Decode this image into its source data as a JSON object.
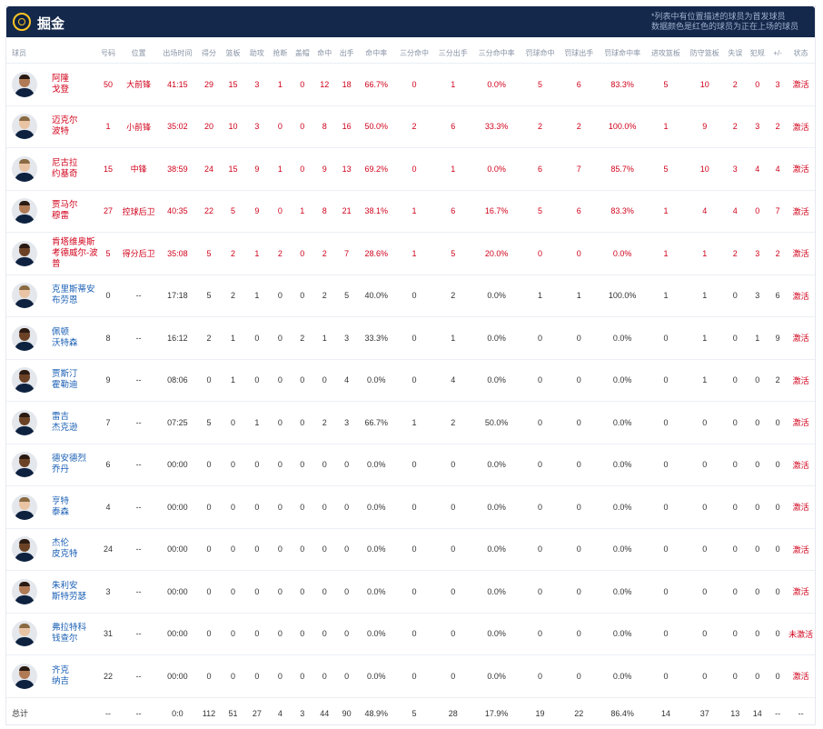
{
  "header": {
    "team_name": "掘金",
    "note_line1": "*列表中有位置描述的球员为首发球员",
    "note_line2": "数据颜色是红色的球员为正在上场的球员"
  },
  "columns": [
    "球员",
    "号码",
    "位置",
    "出场时间",
    "得分",
    "篮板",
    "助攻",
    "抢断",
    "盖帽",
    "命中",
    "出手",
    "命中率",
    "三分命中",
    "三分出手",
    "三分命中率",
    "罚球命中",
    "罚球出手",
    "罚球命中率",
    "进攻篮板",
    "防守篮板",
    "失误",
    "犯规",
    "+/-",
    "状态"
  ],
  "players": [
    {
      "name1": "阿隆",
      "name2": "戈登",
      "starter": true,
      "tone": "",
      "cells": [
        "50",
        "大前锋",
        "41:15",
        "29",
        "15",
        "3",
        "1",
        "0",
        "12",
        "18",
        "66.7%",
        "0",
        "1",
        "0.0%",
        "5",
        "6",
        "83.3%",
        "5",
        "10",
        "2",
        "0",
        "3",
        "激活"
      ]
    },
    {
      "name1": "迈克尔",
      "name2": "波特",
      "starter": true,
      "tone": "light",
      "cells": [
        "1",
        "小前锋",
        "35:02",
        "20",
        "10",
        "3",
        "0",
        "0",
        "8",
        "16",
        "50.0%",
        "2",
        "6",
        "33.3%",
        "2",
        "2",
        "100.0%",
        "1",
        "9",
        "2",
        "3",
        "2",
        "激活"
      ]
    },
    {
      "name1": "尼古拉",
      "name2": "约基奇",
      "starter": true,
      "tone": "light",
      "cells": [
        "15",
        "中锋",
        "38:59",
        "24",
        "15",
        "9",
        "1",
        "0",
        "9",
        "13",
        "69.2%",
        "0",
        "1",
        "0.0%",
        "6",
        "7",
        "85.7%",
        "5",
        "10",
        "3",
        "4",
        "4",
        "激活"
      ]
    },
    {
      "name1": "贾马尔",
      "name2": "穆雷",
      "starter": true,
      "tone": "",
      "cells": [
        "27",
        "控球后卫",
        "40:35",
        "22",
        "5",
        "9",
        "0",
        "1",
        "8",
        "21",
        "38.1%",
        "1",
        "6",
        "16.7%",
        "5",
        "6",
        "83.3%",
        "1",
        "4",
        "4",
        "0",
        "7",
        "激活"
      ]
    },
    {
      "name1": "肯塔维奥斯",
      "name2": "考德威尔-波",
      "name3": "普",
      "starter": true,
      "tone": "dark",
      "cells": [
        "5",
        "得分后卫",
        "35:08",
        "5",
        "2",
        "1",
        "2",
        "0",
        "2",
        "7",
        "28.6%",
        "1",
        "5",
        "20.0%",
        "0",
        "0",
        "0.0%",
        "1",
        "1",
        "2",
        "3",
        "2",
        "激活"
      ]
    },
    {
      "name1": "克里斯蒂安",
      "name2": "布劳恩",
      "starter": false,
      "tone": "light",
      "cells": [
        "0",
        "--",
        "17:18",
        "5",
        "2",
        "1",
        "0",
        "0",
        "2",
        "5",
        "40.0%",
        "0",
        "2",
        "0.0%",
        "1",
        "1",
        "100.0%",
        "1",
        "1",
        "0",
        "3",
        "6",
        "激活"
      ]
    },
    {
      "name1": "佩顿",
      "name2": "沃特森",
      "starter": false,
      "tone": "dark",
      "cells": [
        "8",
        "--",
        "16:12",
        "2",
        "1",
        "0",
        "0",
        "2",
        "1",
        "3",
        "33.3%",
        "0",
        "1",
        "0.0%",
        "0",
        "0",
        "0.0%",
        "0",
        "1",
        "0",
        "1",
        "9",
        "激活"
      ]
    },
    {
      "name1": "贾斯汀",
      "name2": "霍勒迪",
      "starter": false,
      "tone": "dark",
      "cells": [
        "9",
        "--",
        "08:06",
        "0",
        "1",
        "0",
        "0",
        "0",
        "0",
        "4",
        "0.0%",
        "0",
        "4",
        "0.0%",
        "0",
        "0",
        "0.0%",
        "0",
        "1",
        "0",
        "0",
        "2",
        "激活"
      ]
    },
    {
      "name1": "雷吉",
      "name2": "杰克逊",
      "starter": false,
      "tone": "dark",
      "cells": [
        "7",
        "--",
        "07:25",
        "5",
        "0",
        "1",
        "0",
        "0",
        "2",
        "3",
        "66.7%",
        "1",
        "2",
        "50.0%",
        "0",
        "0",
        "0.0%",
        "0",
        "0",
        "0",
        "0",
        "0",
        "激活"
      ]
    },
    {
      "name1": "德安德烈",
      "name2": "乔丹",
      "starter": false,
      "tone": "dark",
      "cells": [
        "6",
        "--",
        "00:00",
        "0",
        "0",
        "0",
        "0",
        "0",
        "0",
        "0",
        "0.0%",
        "0",
        "0",
        "0.0%",
        "0",
        "0",
        "0.0%",
        "0",
        "0",
        "0",
        "0",
        "0",
        "激活"
      ]
    },
    {
      "name1": "亨特",
      "name2": "泰森",
      "starter": false,
      "tone": "light",
      "cells": [
        "4",
        "--",
        "00:00",
        "0",
        "0",
        "0",
        "0",
        "0",
        "0",
        "0",
        "0.0%",
        "0",
        "0",
        "0.0%",
        "0",
        "0",
        "0.0%",
        "0",
        "0",
        "0",
        "0",
        "0",
        "激活"
      ]
    },
    {
      "name1": "杰伦",
      "name2": "皮克特",
      "starter": false,
      "tone": "dark",
      "cells": [
        "24",
        "--",
        "00:00",
        "0",
        "0",
        "0",
        "0",
        "0",
        "0",
        "0",
        "0.0%",
        "0",
        "0",
        "0.0%",
        "0",
        "0",
        "0.0%",
        "0",
        "0",
        "0",
        "0",
        "0",
        "激活"
      ]
    },
    {
      "name1": "朱利安",
      "name2": "斯特劳瑟",
      "starter": false,
      "tone": "",
      "cells": [
        "3",
        "--",
        "00:00",
        "0",
        "0",
        "0",
        "0",
        "0",
        "0",
        "0",
        "0.0%",
        "0",
        "0",
        "0.0%",
        "0",
        "0",
        "0.0%",
        "0",
        "0",
        "0",
        "0",
        "0",
        "激活"
      ]
    },
    {
      "name1": "弗拉特科",
      "name2": "钱查尔",
      "starter": false,
      "tone": "light",
      "cells": [
        "31",
        "--",
        "00:00",
        "0",
        "0",
        "0",
        "0",
        "0",
        "0",
        "0",
        "0.0%",
        "0",
        "0",
        "0.0%",
        "0",
        "0",
        "0.0%",
        "0",
        "0",
        "0",
        "0",
        "0",
        "未激活"
      ]
    },
    {
      "name1": "齐克",
      "name2": "纳吉",
      "starter": false,
      "tone": "",
      "cells": [
        "22",
        "--",
        "00:00",
        "0",
        "0",
        "0",
        "0",
        "0",
        "0",
        "0",
        "0.0%",
        "0",
        "0",
        "0.0%",
        "0",
        "0",
        "0.0%",
        "0",
        "0",
        "0",
        "0",
        "0",
        "激活"
      ]
    }
  ],
  "totals": {
    "label": "总计",
    "cells": [
      "--",
      "--",
      "0:0",
      "112",
      "51",
      "27",
      "4",
      "3",
      "44",
      "90",
      "48.9%",
      "5",
      "28",
      "17.9%",
      "19",
      "22",
      "86.4%",
      "14",
      "37",
      "13",
      "14",
      "--",
      "--"
    ]
  }
}
